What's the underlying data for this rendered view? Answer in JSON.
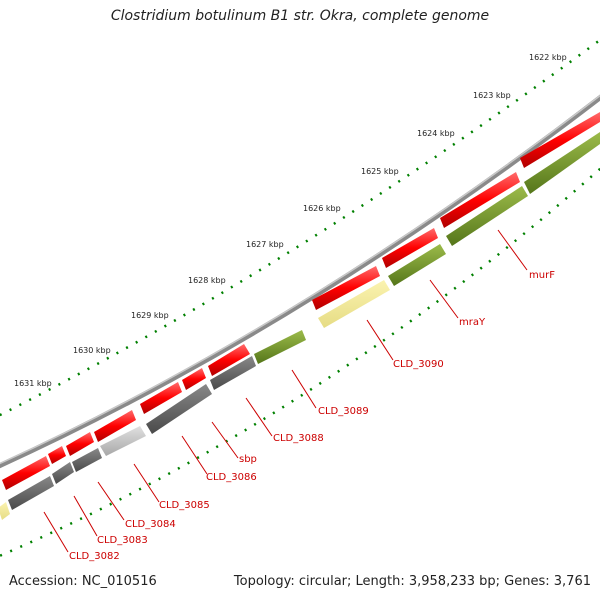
{
  "title": "Clostridium botulinum B1 str. Okra, complete genome",
  "accession": "Accession: NC_010516",
  "topology": "Topology: circular; Length: 3,958,233 bp; Genes: 3,761",
  "colors": {
    "backbone": "#8a8a8a",
    "forward_gene": "#ff0000",
    "cds_olive": "#6b8e23",
    "cds_dark": "#666666",
    "cds_light": "#c8c8c8",
    "cds_pale": "#f0e68c",
    "tick": "#008000",
    "label": "#cc0000"
  },
  "scale_ticks": [
    "1622 kbp",
    "1623 kbp",
    "1624 kbp",
    "1625 kbp",
    "1626 kbp",
    "1627 kbp",
    "1628 kbp",
    "1629 kbp",
    "1630 kbp",
    "1631 kbp"
  ],
  "gene_labels": [
    "murF",
    "mraY",
    "CLD_3090",
    "CLD_3089",
    "CLD_3088",
    "sbp",
    "CLD_3086",
    "CLD_3085",
    "CLD_3084",
    "CLD_3083",
    "CLD_3082"
  ]
}
